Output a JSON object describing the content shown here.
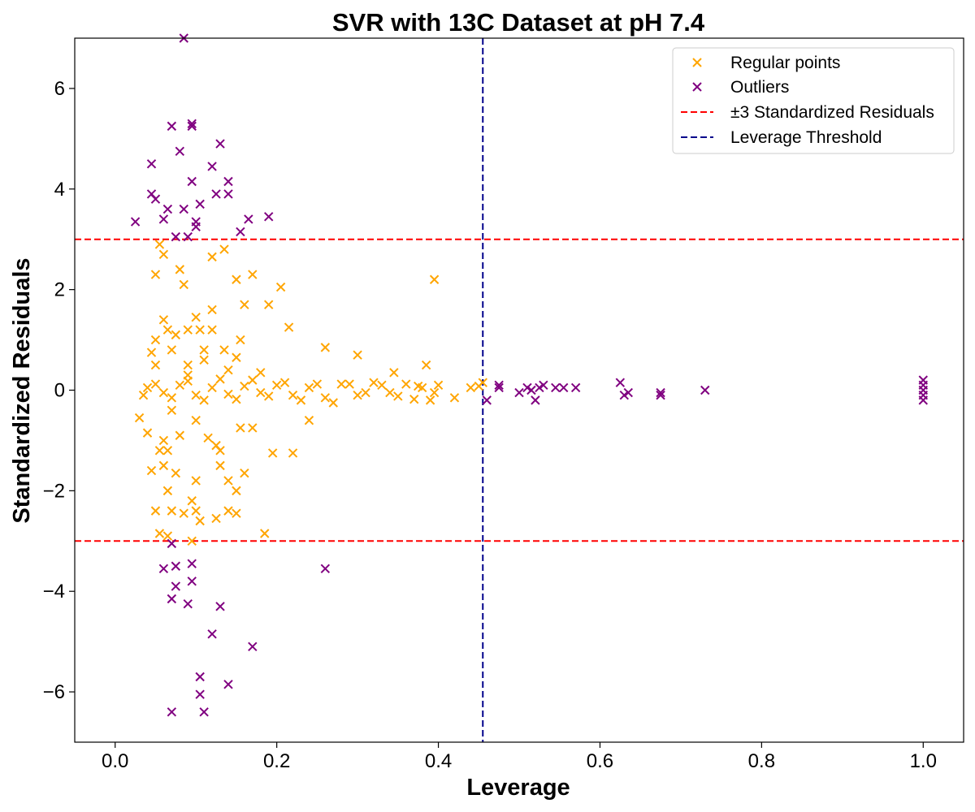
{
  "chart_data": {
    "type": "scatter",
    "title": "SVR with 13C Dataset at pH 7.4",
    "xlabel": "Leverage",
    "ylabel": "Standardized Residuals",
    "xlim": [
      -0.05,
      1.05
    ],
    "ylim": [
      -7,
      7
    ],
    "x_ticks": [
      0.0,
      0.2,
      0.4,
      0.6,
      0.8,
      1.0
    ],
    "x_tick_labels": [
      "0.0",
      "0.2",
      "0.4",
      "0.6",
      "0.8",
      "1.0"
    ],
    "y_ticks": [
      -6,
      -4,
      -2,
      0,
      2,
      4,
      6
    ],
    "y_tick_labels": [
      "−6",
      "−4",
      "−2",
      "0",
      "2",
      "4",
      "6"
    ],
    "grid": false,
    "legend_position": "top-right",
    "marker": "x",
    "series": [
      {
        "name": "Regular points",
        "color": "#FFA500",
        "points": [
          [
            0.06,
            -1.0
          ],
          [
            0.07,
            0.8
          ],
          [
            0.05,
            1.0
          ],
          [
            0.09,
            1.2
          ],
          [
            0.12,
            1.6
          ],
          [
            0.15,
            2.2
          ],
          [
            0.1,
            -0.6
          ],
          [
            0.08,
            -0.9
          ],
          [
            0.13,
            -1.2
          ],
          [
            0.06,
            -1.5
          ],
          [
            0.11,
            0.6
          ],
          [
            0.14,
            0.4
          ],
          [
            0.07,
            -0.4
          ],
          [
            0.09,
            0.5
          ],
          [
            0.05,
            -2.4
          ],
          [
            0.05,
            2.3
          ],
          [
            0.055,
            2.9
          ],
          [
            0.06,
            2.7
          ],
          [
            0.08,
            2.4
          ],
          [
            0.085,
            2.1
          ],
          [
            0.12,
            2.65
          ],
          [
            0.135,
            2.8
          ],
          [
            0.16,
            1.7
          ],
          [
            0.17,
            2.3
          ],
          [
            0.19,
            1.7
          ],
          [
            0.205,
            2.05
          ],
          [
            0.215,
            1.25
          ],
          [
            0.26,
            0.85
          ],
          [
            0.3,
            0.7
          ],
          [
            0.345,
            0.35
          ],
          [
            0.385,
            0.5
          ],
          [
            0.395,
            2.2
          ],
          [
            0.065,
            -2.0
          ],
          [
            0.07,
            -2.4
          ],
          [
            0.085,
            -2.45
          ],
          [
            0.095,
            -2.2
          ],
          [
            0.1,
            -2.4
          ],
          [
            0.105,
            -2.6
          ],
          [
            0.125,
            -2.55
          ],
          [
            0.14,
            -2.4
          ],
          [
            0.15,
            -2.45
          ],
          [
            0.15,
            -2.0
          ],
          [
            0.14,
            -1.8
          ],
          [
            0.16,
            -1.65
          ],
          [
            0.055,
            -2.85
          ],
          [
            0.065,
            -2.9
          ],
          [
            0.095,
            -3.0
          ],
          [
            0.185,
            -2.85
          ],
          [
            0.195,
            -1.25
          ],
          [
            0.22,
            -1.25
          ],
          [
            0.24,
            -0.6
          ],
          [
            0.03,
            -0.55
          ],
          [
            0.04,
            -0.85
          ],
          [
            0.045,
            -1.6
          ],
          [
            0.055,
            -1.2
          ],
          [
            0.065,
            -1.2
          ],
          [
            0.075,
            -1.65
          ],
          [
            0.1,
            -1.8
          ],
          [
            0.13,
            -1.5
          ],
          [
            0.17,
            -0.75
          ],
          [
            0.155,
            -0.75
          ],
          [
            0.115,
            -0.95
          ],
          [
            0.125,
            -1.1
          ],
          [
            0.06,
            1.4
          ],
          [
            0.065,
            1.2
          ],
          [
            0.075,
            1.1
          ],
          [
            0.1,
            1.45
          ],
          [
            0.105,
            1.2
          ],
          [
            0.12,
            1.2
          ],
          [
            0.155,
            1.0
          ],
          [
            0.045,
            0.75
          ],
          [
            0.05,
            0.5
          ],
          [
            0.09,
            0.3
          ],
          [
            0.11,
            0.8
          ],
          [
            0.135,
            0.8
          ],
          [
            0.15,
            0.65
          ],
          [
            0.18,
            0.35
          ],
          [
            0.04,
            0.05
          ],
          [
            0.06,
            -0.05
          ],
          [
            0.08,
            0.1
          ],
          [
            0.1,
            -0.1
          ],
          [
            0.12,
            0.05
          ],
          [
            0.14,
            -0.08
          ],
          [
            0.16,
            0.08
          ],
          [
            0.18,
            -0.05
          ],
          [
            0.2,
            0.1
          ],
          [
            0.22,
            -0.1
          ],
          [
            0.24,
            0.05
          ],
          [
            0.26,
            -0.15
          ],
          [
            0.28,
            0.12
          ],
          [
            0.3,
            -0.1
          ],
          [
            0.32,
            0.15
          ],
          [
            0.34,
            -0.05
          ],
          [
            0.36,
            0.12
          ],
          [
            0.37,
            -0.18
          ],
          [
            0.38,
            0.05
          ],
          [
            0.39,
            -0.2
          ],
          [
            0.4,
            0.1
          ],
          [
            0.42,
            -0.15
          ],
          [
            0.45,
            0.08
          ],
          [
            0.455,
            0.15
          ],
          [
            0.29,
            0.12
          ],
          [
            0.27,
            -0.25
          ],
          [
            0.25,
            0.12
          ],
          [
            0.23,
            -0.2
          ],
          [
            0.21,
            0.15
          ],
          [
            0.19,
            -0.12
          ],
          [
            0.17,
            0.2
          ],
          [
            0.15,
            -0.18
          ],
          [
            0.13,
            0.22
          ],
          [
            0.11,
            -0.2
          ],
          [
            0.09,
            0.18
          ],
          [
            0.07,
            -0.15
          ],
          [
            0.05,
            0.12
          ],
          [
            0.035,
            -0.1
          ],
          [
            0.31,
            -0.05
          ],
          [
            0.33,
            0.1
          ],
          [
            0.35,
            -0.12
          ],
          [
            0.375,
            0.08
          ],
          [
            0.44,
            0.05
          ],
          [
            0.395,
            -0.05
          ]
        ]
      },
      {
        "name": "Outliers",
        "color": "#800080",
        "points": [
          [
            0.025,
            3.35
          ],
          [
            0.045,
            3.9
          ],
          [
            0.045,
            4.5
          ],
          [
            0.05,
            3.8
          ],
          [
            0.065,
            3.6
          ],
          [
            0.06,
            3.4
          ],
          [
            0.07,
            5.25
          ],
          [
            0.075,
            3.05
          ],
          [
            0.08,
            4.75
          ],
          [
            0.085,
            3.6
          ],
          [
            0.085,
            7.0
          ],
          [
            0.09,
            3.05
          ],
          [
            0.095,
            5.25
          ],
          [
            0.095,
            5.3
          ],
          [
            0.095,
            4.15
          ],
          [
            0.1,
            3.35
          ],
          [
            0.1,
            3.25
          ],
          [
            0.105,
            3.7
          ],
          [
            0.12,
            4.45
          ],
          [
            0.125,
            3.9
          ],
          [
            0.13,
            4.9
          ],
          [
            0.14,
            3.9
          ],
          [
            0.14,
            4.15
          ],
          [
            0.155,
            3.15
          ],
          [
            0.165,
            3.4
          ],
          [
            0.19,
            3.45
          ],
          [
            0.06,
            -3.55
          ],
          [
            0.07,
            -3.05
          ],
          [
            0.07,
            -4.15
          ],
          [
            0.075,
            -3.9
          ],
          [
            0.075,
            -3.5
          ],
          [
            0.09,
            -4.25
          ],
          [
            0.095,
            -3.8
          ],
          [
            0.095,
            -3.45
          ],
          [
            0.07,
            -6.4
          ],
          [
            0.105,
            -5.7
          ],
          [
            0.105,
            -6.05
          ],
          [
            0.11,
            -6.4
          ],
          [
            0.12,
            -4.85
          ],
          [
            0.13,
            -4.3
          ],
          [
            0.14,
            -5.85
          ],
          [
            0.17,
            -5.1
          ],
          [
            0.26,
            -3.55
          ],
          [
            0.46,
            -0.2
          ],
          [
            0.475,
            0.05
          ],
          [
            0.475,
            0.1
          ],
          [
            0.5,
            -0.05
          ],
          [
            0.51,
            0.05
          ],
          [
            0.515,
            0.0
          ],
          [
            0.52,
            -0.2
          ],
          [
            0.525,
            0.05
          ],
          [
            0.53,
            0.1
          ],
          [
            0.545,
            0.05
          ],
          [
            0.555,
            0.05
          ],
          [
            0.57,
            0.05
          ],
          [
            0.625,
            0.15
          ],
          [
            0.63,
            -0.1
          ],
          [
            0.635,
            -0.05
          ],
          [
            0.675,
            -0.05
          ],
          [
            0.675,
            -0.1
          ],
          [
            0.73,
            0.0
          ],
          [
            1.0,
            0.2
          ],
          [
            1.0,
            0.1
          ],
          [
            1.0,
            0.0
          ],
          [
            1.0,
            -0.1
          ],
          [
            1.0,
            -0.2
          ]
        ]
      }
    ],
    "reference_lines": [
      {
        "name": "±3 Standardized Residuals",
        "orientation": "horizontal",
        "values": [
          3,
          -3
        ],
        "color": "#FF0000",
        "style": "dashed"
      },
      {
        "name": "Leverage Threshold",
        "orientation": "vertical",
        "values": [
          0.455
        ],
        "color": "#00008B",
        "style": "dashed"
      }
    ]
  }
}
